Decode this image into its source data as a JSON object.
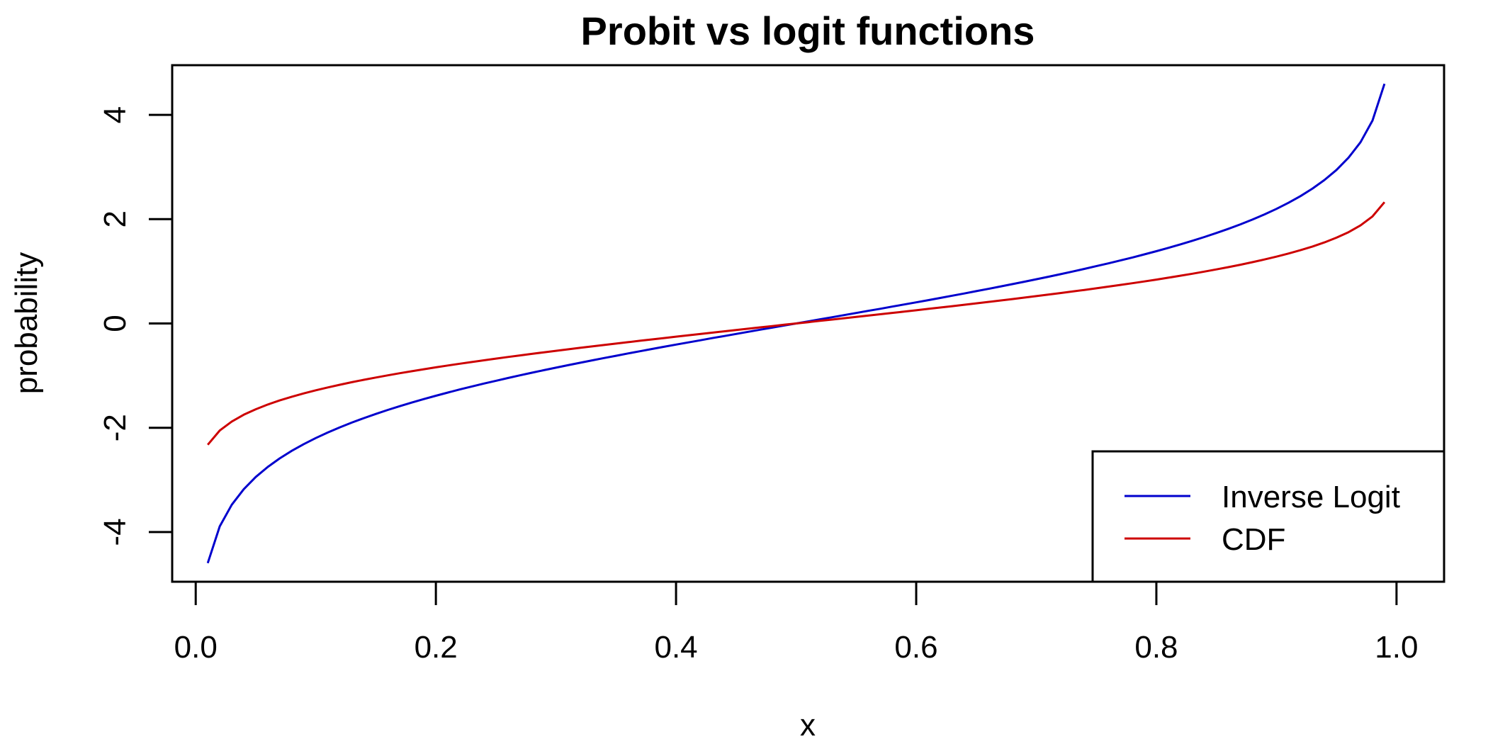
{
  "chart_data": {
    "type": "line",
    "title": "Probit vs logit functions",
    "xlabel": "x",
    "ylabel": "probability",
    "xlim": [
      -0.0196,
      1.0396
    ],
    "ylim": [
      -4.9528,
      4.9528
    ],
    "x_ticks": [
      0.0,
      0.2,
      0.4,
      0.6,
      0.8,
      1.0
    ],
    "x_tick_labels": [
      "0.0",
      "0.2",
      "0.4",
      "0.6",
      "0.8",
      "1.0"
    ],
    "y_ticks": [
      -4,
      -2,
      0,
      2,
      4
    ],
    "y_tick_labels": [
      "-4",
      "-2",
      "0",
      "2",
      "4"
    ],
    "grid": false,
    "legend_position": "bottom-right",
    "x": [
      0.01,
      0.02,
      0.03,
      0.04,
      0.05,
      0.06,
      0.07,
      0.08,
      0.09,
      0.1,
      0.11,
      0.12,
      0.13,
      0.14,
      0.15,
      0.16,
      0.17,
      0.18,
      0.19,
      0.2,
      0.21,
      0.22,
      0.23,
      0.24,
      0.25,
      0.26,
      0.27,
      0.28,
      0.29,
      0.3,
      0.31,
      0.32,
      0.33,
      0.34,
      0.35,
      0.36,
      0.37,
      0.38,
      0.39,
      0.4,
      0.41,
      0.42,
      0.43,
      0.44,
      0.45,
      0.46,
      0.47,
      0.48,
      0.49,
      0.5,
      0.51,
      0.52,
      0.53,
      0.54,
      0.55,
      0.56,
      0.57,
      0.58,
      0.59,
      0.6,
      0.61,
      0.62,
      0.63,
      0.64,
      0.65,
      0.66,
      0.67,
      0.68,
      0.69,
      0.7,
      0.71,
      0.72,
      0.73,
      0.74,
      0.75,
      0.76,
      0.77,
      0.78,
      0.79,
      0.8,
      0.81,
      0.82,
      0.83,
      0.84,
      0.85,
      0.86,
      0.87,
      0.88,
      0.89,
      0.9,
      0.91,
      0.92,
      0.93,
      0.94,
      0.95,
      0.96,
      0.97,
      0.98,
      0.99
    ],
    "series": [
      {
        "name": "Inverse Logit",
        "color": "#0000CD",
        "values": [
          -4.5951,
          -3.8918,
          -3.4761,
          -3.1781,
          -2.9444,
          -2.7515,
          -2.5867,
          -2.4423,
          -2.3136,
          -2.1972,
          -2.0907,
          -1.9924,
          -1.901,
          -1.8153,
          -1.7346,
          -1.6582,
          -1.5856,
          -1.5163,
          -1.45,
          -1.3863,
          -1.3249,
          -1.2657,
          -1.2083,
          -1.1527,
          -1.0986,
          -1.046,
          -0.9946,
          -0.9445,
          -0.8954,
          -0.8473,
          -0.8001,
          -0.7538,
          -0.7082,
          -0.6633,
          -0.619,
          -0.5754,
          -0.5322,
          -0.4895,
          -0.4473,
          -0.4055,
          -0.364,
          -0.3228,
          -0.2819,
          -0.2412,
          -0.2007,
          -0.1603,
          -0.1201,
          -0.08,
          -0.04,
          0.0,
          0.04,
          0.08,
          0.1201,
          0.1603,
          0.2007,
          0.2412,
          0.2819,
          0.3228,
          0.364,
          0.4055,
          0.4473,
          0.4895,
          0.5322,
          0.5754,
          0.619,
          0.6633,
          0.7082,
          0.7538,
          0.8001,
          0.8473,
          0.8954,
          0.9445,
          0.9946,
          1.046,
          1.0986,
          1.1527,
          1.2083,
          1.2657,
          1.3249,
          1.3863,
          1.45,
          1.5163,
          1.5856,
          1.6582,
          1.7346,
          1.8153,
          1.901,
          1.9924,
          2.0907,
          2.1972,
          2.3136,
          2.4423,
          2.5867,
          2.7515,
          2.9444,
          3.1781,
          3.4761,
          3.8918,
          4.5951
        ]
      },
      {
        "name": "CDF",
        "color": "#CD0000",
        "values": [
          -2.3263,
          -2.0537,
          -1.8808,
          -1.7507,
          -1.6449,
          -1.5548,
          -1.4758,
          -1.4051,
          -1.3408,
          -1.2816,
          -1.2265,
          -1.175,
          -1.1264,
          -1.0803,
          -1.0364,
          -0.9945,
          -0.9542,
          -0.9154,
          -0.8779,
          -0.8416,
          -0.8064,
          -0.7722,
          -0.7388,
          -0.7063,
          -0.6745,
          -0.6433,
          -0.6128,
          -0.5828,
          -0.5534,
          -0.5244,
          -0.4959,
          -0.4677,
          -0.4399,
          -0.4125,
          -0.3853,
          -0.3585,
          -0.3319,
          -0.3055,
          -0.2793,
          -0.2533,
          -0.2275,
          -0.2019,
          -0.1764,
          -0.151,
          -0.1257,
          -0.1004,
          -0.0753,
          -0.0502,
          -0.0251,
          0.0,
          0.0251,
          0.0502,
          0.0753,
          0.1004,
          0.1257,
          0.151,
          0.1764,
          0.2019,
          0.2275,
          0.2533,
          0.2793,
          0.3055,
          0.3319,
          0.3585,
          0.3853,
          0.4125,
          0.4399,
          0.4677,
          0.4959,
          0.5244,
          0.5534,
          0.5828,
          0.6128,
          0.6433,
          0.6745,
          0.7063,
          0.7388,
          0.7722,
          0.8064,
          0.8416,
          0.8779,
          0.9154,
          0.9542,
          0.9945,
          1.0364,
          1.0803,
          1.1264,
          1.175,
          1.2265,
          1.2816,
          1.3408,
          1.4051,
          1.4758,
          1.5548,
          1.6449,
          1.7507,
          1.8808,
          2.0537,
          2.3263
        ]
      }
    ]
  }
}
